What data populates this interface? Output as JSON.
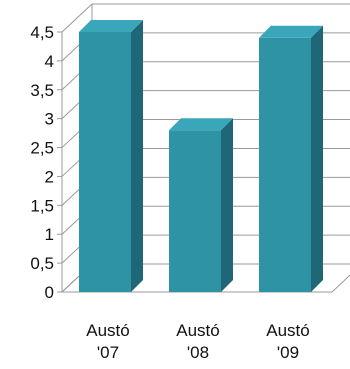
{
  "chart_data": {
    "type": "bar",
    "title": "",
    "xlabel": "",
    "ylabel": "",
    "categories": [
      "Austó '07",
      "Austó '08",
      "Austó '09"
    ],
    "category_lines": [
      [
        "Austó",
        "'07"
      ],
      [
        "Austó",
        "'08"
      ],
      [
        "Austó",
        "'09"
      ]
    ],
    "values": [
      4.5,
      2.8,
      4.4
    ],
    "ylim": [
      0,
      4.5
    ],
    "yticks": [
      "0",
      "0,5",
      "1",
      "1,5",
      "2",
      "2,5",
      "3",
      "3,5",
      "4",
      "4,5"
    ],
    "grid": true,
    "legend": "none",
    "bar_style": "3d",
    "colors": {
      "front": "#2f93a6",
      "side": "#1f6677",
      "top": "#3aa6b9"
    }
  }
}
